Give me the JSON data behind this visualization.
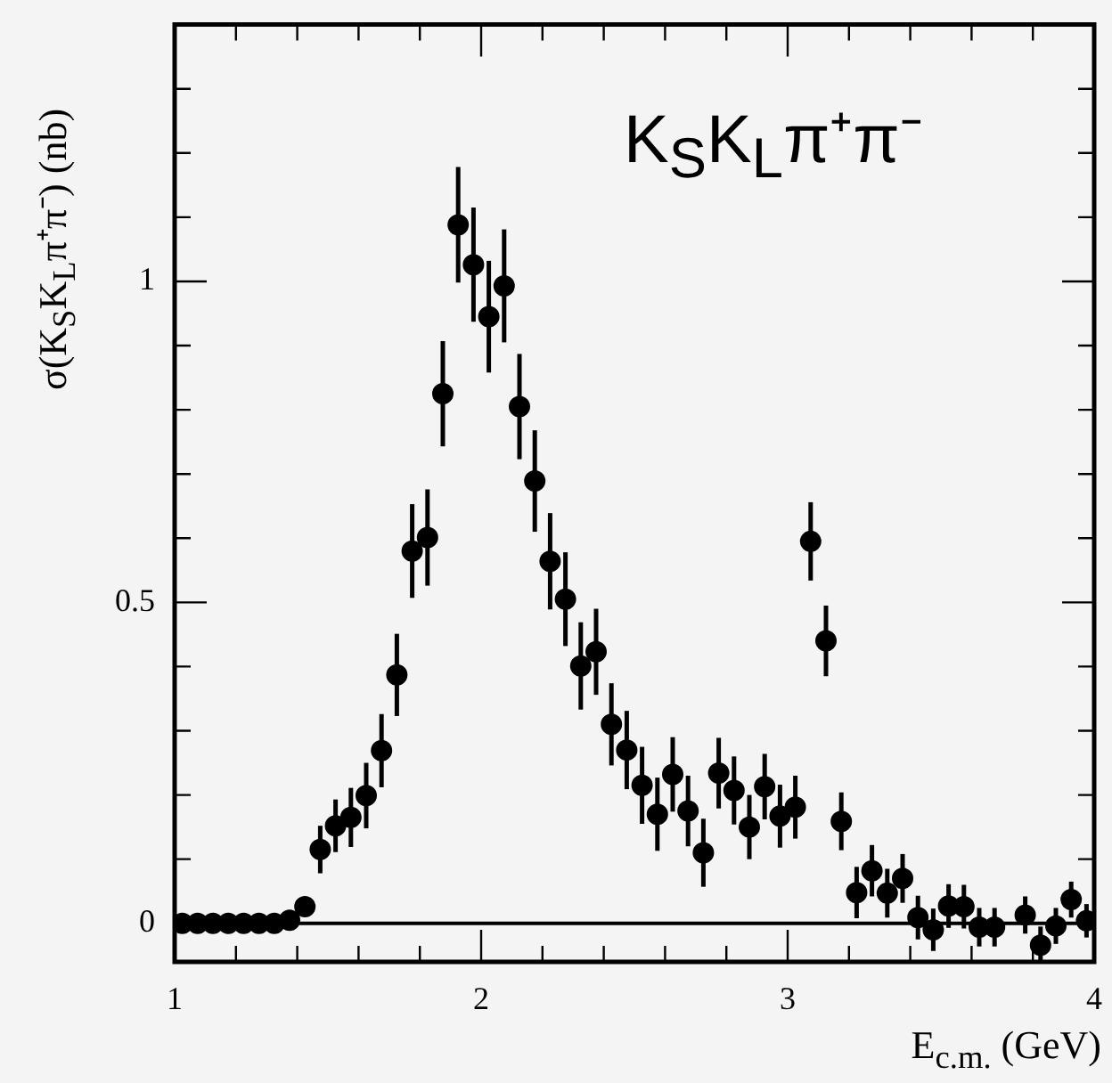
{
  "chart_data": {
    "type": "scatter",
    "xlabel": "E$_{c.m.}$ (GeV)",
    "ylabel": "σ(K$_{S}$K$_{L}$π⁺π⁻) (nb)",
    "annotations": [
      "K$_{S}$K$_{L}$π⁺π⁻"
    ],
    "x": [
      1.025,
      1.075,
      1.125,
      1.175,
      1.225,
      1.275,
      1.325,
      1.375,
      1.425,
      1.475,
      1.525,
      1.575,
      1.625,
      1.675,
      1.725,
      1.775,
      1.825,
      1.875,
      1.925,
      1.975,
      2.025,
      2.075,
      2.125,
      2.175,
      2.225,
      2.275,
      2.325,
      2.375,
      2.425,
      2.475,
      2.525,
      2.575,
      2.625,
      2.675,
      2.725,
      2.775,
      2.825,
      2.875,
      2.925,
      2.975,
      3.025,
      3.075,
      3.125,
      3.175,
      3.225,
      3.275,
      3.325,
      3.375,
      3.425,
      3.475,
      3.525,
      3.575,
      3.625,
      3.675,
      3.725,
      3.775,
      3.825,
      3.875,
      3.925,
      3.975
    ],
    "values": [
      0,
      0,
      0,
      0,
      0,
      0,
      0,
      0.005,
      0.026,
      0.115,
      0.152,
      0.165,
      0.199,
      0.269,
      0.387,
      0.58,
      0.601,
      0.825,
      1.088,
      1.026,
      0.945,
      0.993,
      0.805,
      0.689,
      0.564,
      0.505,
      0.401,
      0.423,
      0.31,
      0.27,
      0.215,
      0.17,
      0.232,
      0.175,
      0.11,
      0.234,
      0.207,
      0.15,
      0.213,
      0.167,
      0.181,
      0.595,
      0.44,
      0.159,
      0.048,
      0.082,
      0.047,
      0.07,
      0.009,
      -0.01,
      0.027,
      0.026,
      -0.006,
      -0.006,
      null,
      0.013,
      -0.034,
      -0.004,
      0.037,
      0.004
    ],
    "errors": [
      null,
      null,
      null,
      null,
      null,
      null,
      null,
      null,
      0.013,
      0.037,
      0.041,
      0.046,
      0.051,
      0.057,
      0.064,
      0.073,
      0.075,
      0.082,
      0.09,
      0.089,
      0.087,
      0.088,
      0.082,
      0.079,
      0.075,
      0.073,
      0.068,
      0.067,
      0.064,
      0.061,
      0.06,
      0.057,
      0.058,
      0.055,
      0.053,
      0.055,
      0.053,
      0.05,
      0.051,
      0.049,
      0.049,
      0.061,
      0.055,
      0.045,
      0.04,
      0.04,
      0.038,
      0.038,
      0.034,
      0.033,
      0.034,
      0.034,
      0.03,
      0.03,
      null,
      0.029,
      0.029,
      0.028,
      0.028,
      0.026
    ],
    "color": "#000000",
    "marker": "circle",
    "xlim": [
      1,
      4
    ],
    "xticks": [
      1,
      {
        "value": 1.2,
        "label": null
      },
      {
        "value": 1.4,
        "label": null
      },
      {
        "value": 1.6,
        "label": null
      },
      {
        "value": 1.8,
        "label": null
      },
      2,
      {
        "value": 2.2,
        "label": null
      },
      {
        "value": 2.4,
        "label": null
      },
      {
        "value": 2.6,
        "label": null
      },
      {
        "value": 2.8,
        "label": null
      },
      3,
      {
        "value": 3.2,
        "label": null
      },
      {
        "value": 3.4,
        "label": null
      },
      {
        "value": 3.6,
        "label": null
      },
      {
        "value": 3.8,
        "label": null
      },
      4
    ],
    "ylim": [
      -0.06,
      1.4
    ],
    "yticks": [
      0,
      {
        "value": 0.1,
        "label": null
      },
      {
        "value": 0.2,
        "label": null
      },
      {
        "value": 0.3,
        "label": null
      },
      {
        "value": 0.4,
        "label": null
      },
      {
        "value": 0.5,
        "label": "0.5"
      },
      {
        "value": 0.6,
        "label": null
      },
      {
        "value": 0.7,
        "label": null
      },
      {
        "value": 0.8,
        "label": null
      },
      {
        "value": 0.9,
        "label": null
      },
      1,
      {
        "value": 1.1,
        "label": null
      },
      {
        "value": 1.2,
        "label": null
      },
      {
        "value": 1.3,
        "label": null
      }
    ],
    "ref_lines": [
      {
        "axis": "y",
        "value": 0
      }
    ]
  }
}
